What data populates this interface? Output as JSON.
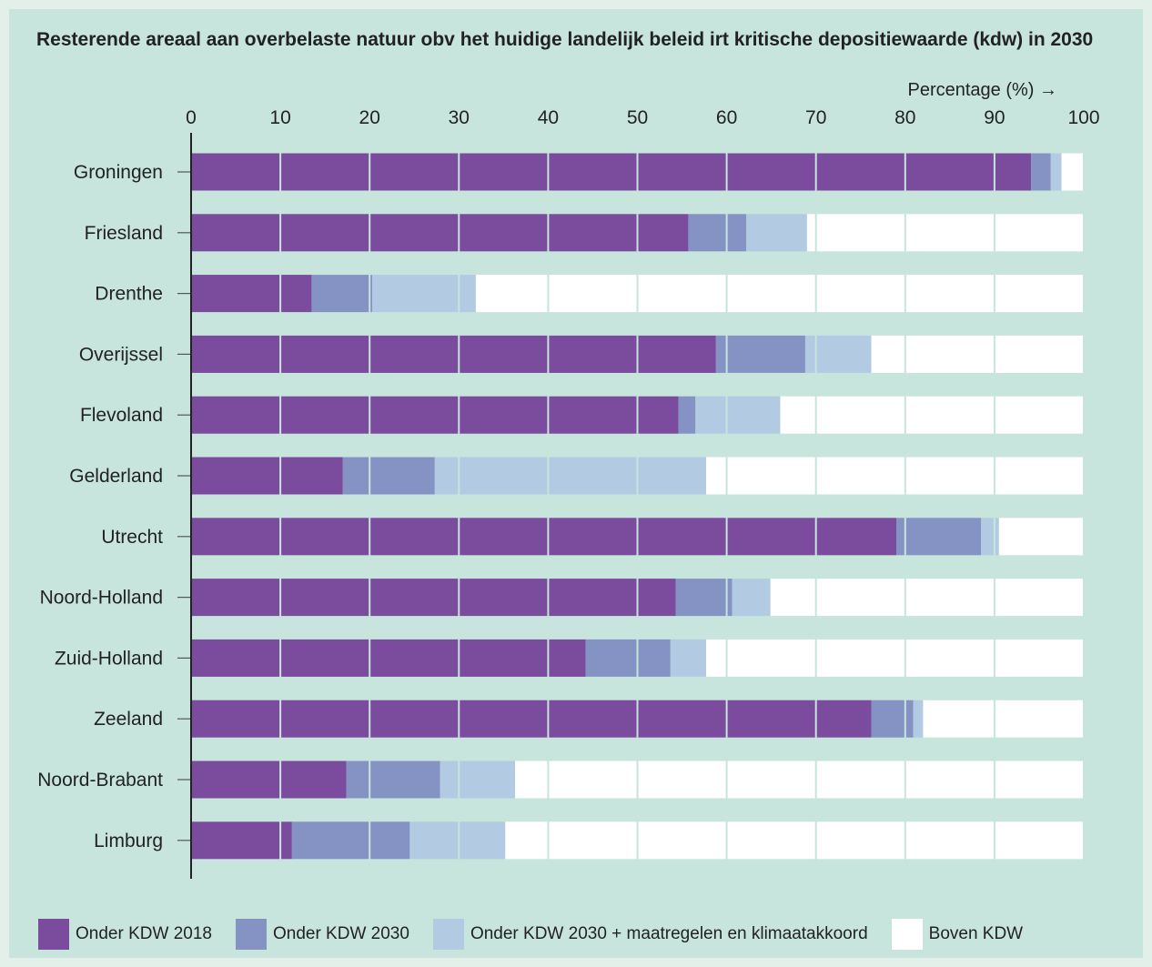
{
  "chart_data": {
    "type": "bar",
    "orientation": "horizontal",
    "stacked": true,
    "title": "Resterende areaal aan overbelaste natuur obv het huidige landelijk beleid irt kritische depositiewaarde (kdw) in 2030",
    "xlabel": "Percentage (%) →",
    "xlim": [
      0,
      100
    ],
    "xticks": [
      0,
      10,
      20,
      30,
      40,
      50,
      60,
      70,
      80,
      90,
      100
    ],
    "categories": [
      "Groningen",
      "Friesland",
      "Drenthe",
      "Overijssel",
      "Flevoland",
      "Gelderland",
      "Utrecht",
      "Noord-Holland",
      "Zuid-Holland",
      "Zeeland",
      "Noord-Brabant",
      "Limburg"
    ],
    "series": [
      {
        "name": "Onder KDW 2018",
        "color": "#7b4b9e",
        "values": [
          94.1,
          55.7,
          13.5,
          58.8,
          54.6,
          17.0,
          79.0,
          54.3,
          44.2,
          76.2,
          17.4,
          11.3
        ]
      },
      {
        "name": "Onder KDW 2030",
        "color": "#8592c4",
        "values": [
          2.2,
          6.5,
          6.8,
          10.0,
          1.9,
          10.3,
          9.5,
          6.3,
          9.5,
          4.7,
          10.5,
          13.2
        ]
      },
      {
        "name": "Onder KDW 2030 + maatregelen en klimaatakkoord",
        "color": "#b2cbe2",
        "values": [
          1.2,
          6.8,
          11.6,
          7.4,
          9.5,
          30.4,
          2.0,
          4.3,
          4.0,
          1.1,
          8.4,
          10.7
        ]
      },
      {
        "name": "Boven KDW",
        "color": "#ffffff",
        "values": [
          2.5,
          31.0,
          68.1,
          23.8,
          34.0,
          42.3,
          9.5,
          35.1,
          42.3,
          18.0,
          63.7,
          64.8
        ]
      }
    ],
    "grid": true,
    "legend_position": "bottom"
  }
}
